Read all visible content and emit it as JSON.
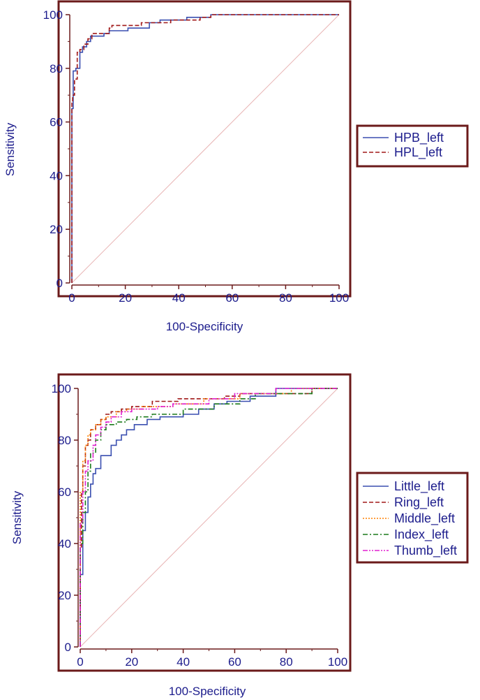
{
  "chart_data": [
    {
      "type": "line",
      "title": "",
      "xlabel": "100-Specificity",
      "ylabel": "Sensitivity",
      "xlim": [
        0,
        100
      ],
      "ylim": [
        0,
        100
      ],
      "xticks": [
        "0",
        "20",
        "40",
        "60",
        "80",
        "100"
      ],
      "yticks": [
        "0",
        "20",
        "40",
        "60",
        "80",
        "100"
      ],
      "diagonal": true,
      "legend_position": "right",
      "series": [
        {
          "name": "HPB_left",
          "color": "#3a4fb0",
          "dash": "solid",
          "x": [
            0,
            0,
            0.5,
            0.5,
            1.5,
            1.5,
            3,
            3,
            4,
            4,
            5.5,
            5.5,
            7,
            7,
            12,
            12,
            14,
            14,
            21,
            21,
            29,
            29,
            33,
            33,
            43,
            43,
            52,
            52,
            100
          ],
          "y": [
            0,
            65,
            65,
            79,
            79,
            80,
            80,
            86,
            86,
            88,
            88,
            90,
            90,
            92,
            92,
            93,
            93,
            94,
            94,
            95,
            95,
            97,
            97,
            98,
            98,
            99,
            99,
            100,
            100
          ]
        },
        {
          "name": "HPL_left",
          "color": "#a01818",
          "dash": "dashed",
          "x": [
            0,
            0,
            0.3,
            0.3,
            1,
            1,
            2,
            2,
            3,
            3,
            4.5,
            4.5,
            6,
            6,
            7.5,
            7.5,
            14,
            14,
            15,
            15,
            26,
            26,
            27,
            27,
            37,
            37,
            44,
            44,
            48,
            48,
            52,
            52,
            100
          ],
          "y": [
            0,
            67,
            67,
            70,
            70,
            76,
            76,
            86,
            86,
            87,
            87,
            89,
            89,
            91,
            91,
            93,
            93,
            95,
            95,
            96,
            96,
            97,
            97,
            97,
            97,
            98,
            98,
            98,
            98,
            99,
            99,
            100,
            100
          ]
        }
      ]
    },
    {
      "type": "line",
      "title": "",
      "xlabel": "100-Specificity",
      "ylabel": "Sensitivity",
      "xlim": [
        0,
        100
      ],
      "ylim": [
        0,
        100
      ],
      "xticks": [
        "0",
        "20",
        "40",
        "60",
        "80",
        "100"
      ],
      "yticks": [
        "0",
        "20",
        "40",
        "60",
        "80",
        "100"
      ],
      "diagonal": true,
      "legend_position": "right",
      "series": [
        {
          "name": "Little_left",
          "color": "#3a4fb0",
          "dash": "solid",
          "x": [
            0,
            0,
            1,
            1,
            2,
            2,
            3,
            3,
            4,
            4,
            5,
            5,
            6,
            6,
            8,
            8,
            12,
            12,
            14,
            14,
            16,
            16,
            18,
            18,
            21,
            21,
            26,
            26,
            31,
            31,
            40,
            40,
            46,
            46,
            52,
            52,
            57,
            57,
            66,
            66,
            76,
            76,
            100
          ],
          "y": [
            0,
            28,
            28,
            45,
            45,
            52,
            52,
            58,
            58,
            63,
            63,
            67,
            67,
            69,
            69,
            74,
            74,
            78,
            78,
            80,
            80,
            82,
            82,
            84,
            84,
            86,
            86,
            88,
            88,
            89,
            89,
            90,
            90,
            92,
            92,
            94,
            94,
            95,
            95,
            97,
            97,
            100,
            100
          ]
        },
        {
          "name": "Ring_left",
          "color": "#a01818",
          "dash": "dashed",
          "x": [
            0,
            0,
            0.5,
            0.5,
            1,
            1,
            2,
            2,
            3,
            3,
            4,
            4,
            6,
            6,
            8,
            8,
            10,
            10,
            12,
            12,
            16,
            16,
            20,
            20,
            28,
            28,
            38,
            38,
            56,
            56,
            62,
            62,
            90,
            90,
            100
          ],
          "y": [
            0,
            38,
            38,
            60,
            60,
            70,
            70,
            78,
            78,
            80,
            80,
            84,
            84,
            86,
            86,
            88,
            88,
            90,
            90,
            91,
            91,
            92,
            92,
            93,
            93,
            95,
            95,
            96,
            96,
            97,
            97,
            98,
            98,
            100,
            100
          ]
        },
        {
          "name": "Middle_left",
          "color": "#ff8000",
          "dash": "dotted",
          "x": [
            0,
            0,
            1,
            1,
            2,
            2,
            3,
            3,
            4,
            4,
            6,
            6,
            8,
            8,
            10,
            10,
            14,
            14,
            18,
            18,
            24,
            24,
            36,
            36,
            48,
            48,
            62,
            62,
            82,
            82,
            100
          ],
          "y": [
            0,
            60,
            60,
            72,
            72,
            78,
            78,
            82,
            82,
            84,
            84,
            86,
            86,
            88,
            88,
            89,
            89,
            91,
            91,
            92,
            92,
            93,
            93,
            94,
            94,
            96,
            96,
            98,
            98,
            100,
            100
          ]
        },
        {
          "name": "Index_left",
          "color": "#1b7a1b",
          "dash": "dashdot",
          "x": [
            0,
            0,
            1,
            1,
            2,
            2,
            3,
            3,
            4,
            4,
            6,
            6,
            8,
            8,
            10,
            10,
            14,
            14,
            18,
            18,
            22,
            22,
            28,
            28,
            40,
            40,
            52,
            52,
            62,
            62,
            68,
            68,
            90,
            90,
            100
          ],
          "y": [
            0,
            40,
            40,
            52,
            52,
            60,
            60,
            68,
            68,
            75,
            75,
            80,
            80,
            84,
            84,
            86,
            86,
            87,
            87,
            88,
            88,
            89,
            89,
            90,
            90,
            92,
            92,
            94,
            94,
            96,
            96,
            98,
            98,
            100,
            100
          ]
        },
        {
          "name": "Thumb_left",
          "color": "#e020d0",
          "dash": "dashdotdot",
          "x": [
            0,
            0,
            1,
            1,
            2,
            2,
            3,
            3,
            5,
            5,
            6,
            6,
            8,
            8,
            10,
            10,
            12,
            12,
            16,
            16,
            20,
            20,
            30,
            30,
            36,
            36,
            50,
            50,
            60,
            60,
            76,
            76,
            100
          ],
          "y": [
            0,
            48,
            48,
            60,
            60,
            68,
            68,
            72,
            72,
            78,
            78,
            82,
            82,
            85,
            85,
            87,
            87,
            89,
            89,
            91,
            91,
            92,
            92,
            93,
            93,
            94,
            94,
            96,
            96,
            98,
            98,
            100,
            100
          ]
        }
      ]
    }
  ]
}
